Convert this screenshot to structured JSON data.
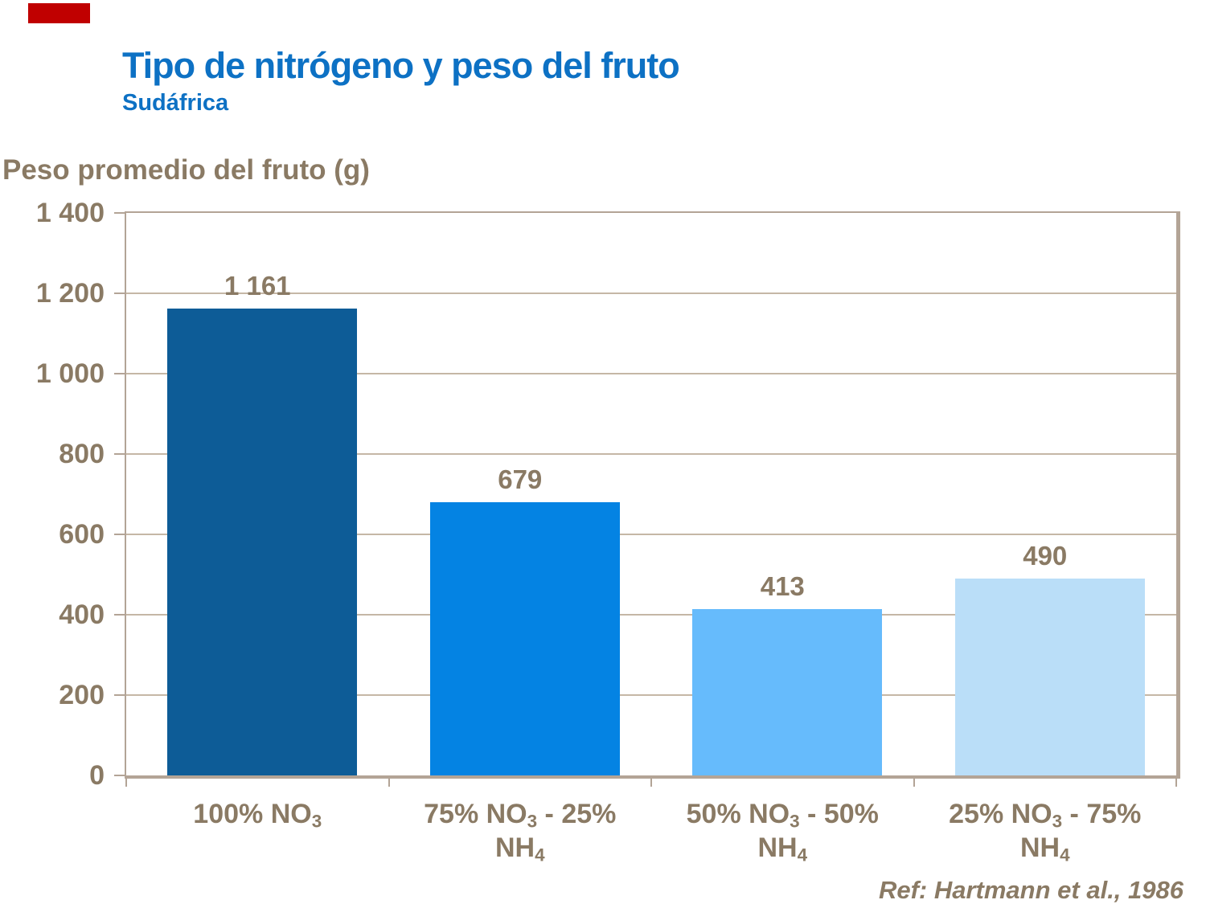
{
  "slide": {
    "accent_color": "#c00000"
  },
  "colors": {
    "title": "#0d71c4",
    "text": "#8a7a64",
    "grid": "#c5b7a6",
    "frame": "#b3a496",
    "background": "#ffffff"
  },
  "chart_data": {
    "type": "bar",
    "title": "Tipo de nitrógeno y peso del fruto",
    "subtitle": "Sudáfrica",
    "ylabel": "Peso promedio del fruto (g)",
    "categories": [
      "100% NO_3",
      "75% NO_3 - 25%\nNH_4",
      "50% NO_3 - 50%\nNH_4",
      "25% NO_3 - 75%\nNH_4"
    ],
    "values": [
      1161,
      679,
      413,
      490
    ],
    "value_labels": [
      "1 161",
      "679",
      "413",
      "490"
    ],
    "bar_colors": [
      "#0d5c97",
      "#0483e3",
      "#66bbfc",
      "#badef8"
    ],
    "ylim": [
      0,
      1400
    ],
    "ytick_step": 200,
    "yticks": [
      {
        "value": 1400,
        "label": "1 400"
      },
      {
        "value": 1200,
        "label": "1 200"
      },
      {
        "value": 1000,
        "label": "1 000"
      },
      {
        "value": 800,
        "label": "800"
      },
      {
        "value": 600,
        "label": "600"
      },
      {
        "value": 400,
        "label": "400"
      },
      {
        "value": 200,
        "label": "200"
      },
      {
        "value": 0,
        "label": "0"
      }
    ],
    "grid": true,
    "gridline_values": [
      1200,
      1000,
      800,
      600,
      400,
      200
    ],
    "reference": "Ref: Hartmann et al., 1986"
  }
}
